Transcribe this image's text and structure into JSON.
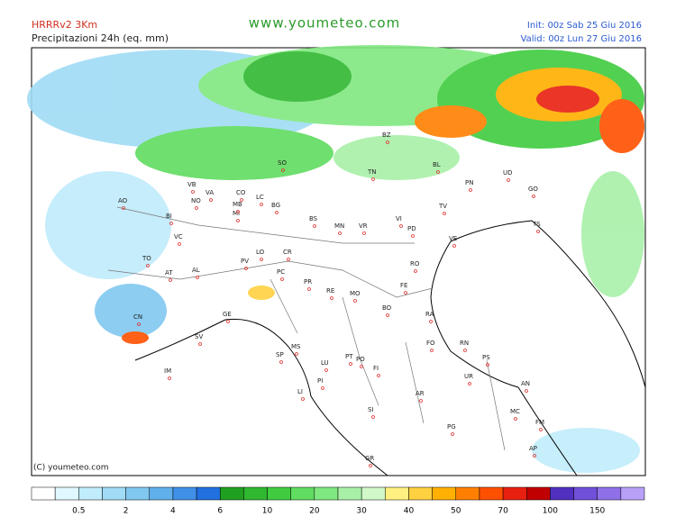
{
  "header": {
    "model": "HRRRv2 3Km",
    "field": "Precipitazioni 24h (eq. mm)",
    "site": "www.youmeteo.com",
    "init": "Init: 00z Sab  25 Giu 2016",
    "valid": "Valid: 00z Lun  27 Giu 2016"
  },
  "copyright": "(C) youmeteo.com",
  "cities": [
    "AO",
    "BI",
    "VC",
    "TO",
    "AT",
    "AL",
    "NO",
    "VB",
    "VA",
    "CO",
    "LC",
    "SO",
    "BG",
    "MI",
    "MB",
    "LO",
    "PV",
    "CR",
    "PC",
    "BS",
    "TN",
    "BZ",
    "BL",
    "PN",
    "UD",
    "GO",
    "TS",
    "TV",
    "VR",
    "VI",
    "PD",
    "VE",
    "MN",
    "RO",
    "FE",
    "PR",
    "RE",
    "MO",
    "BO",
    "RA",
    "FO",
    "RN",
    "PS",
    "UR",
    "AN",
    "MC",
    "FM",
    "AP",
    "AR",
    "SI",
    "GR",
    "PG",
    "PI",
    "LU",
    "PT",
    "PO",
    "FI",
    "LI",
    "MS",
    "SP",
    "GE",
    "SV",
    "IM",
    "CN"
  ],
  "legend": {
    "colors": [
      "#ffffff",
      "#e0f8ff",
      "#c0ecfb",
      "#a0dcf5",
      "#80c8f0",
      "#60b0ec",
      "#4090e8",
      "#2070e0",
      "#20a020",
      "#30b830",
      "#40cc40",
      "#60dc60",
      "#80e880",
      "#a8f0a8",
      "#d0f8c8",
      "#fff080",
      "#ffd040",
      "#ffb000",
      "#ff8000",
      "#ff5000",
      "#e82010",
      "#c00000",
      "#5030c0",
      "#7050d8",
      "#9070e8",
      "#b8a0f8"
    ],
    "ticks": [
      0.5,
      2,
      4,
      6,
      10,
      20,
      30,
      40,
      50,
      70,
      100,
      150
    ]
  }
}
